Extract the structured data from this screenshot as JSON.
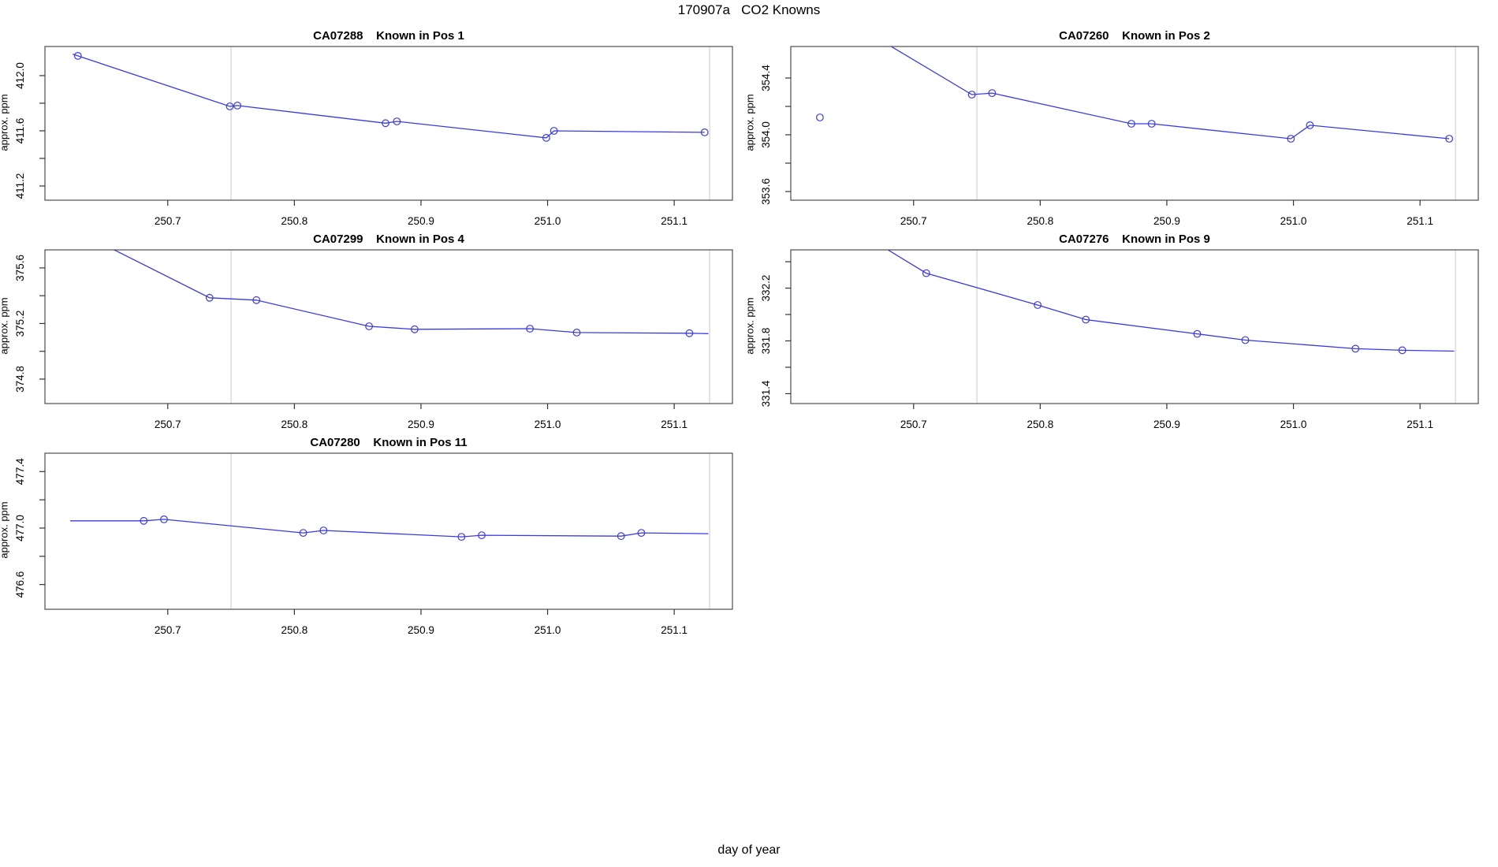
{
  "page_title": "170907a   CO2 Knowns",
  "x_axis_label": "day of year",
  "colors": {
    "series_line": "#3a3ae0",
    "marker_stroke": "#3a3ae0",
    "gridline": "#d9d9d9",
    "frame": "#4d4d4d",
    "tick": "#333333",
    "text": "#000000"
  },
  "x_ticks": [
    {
      "v": 250.7,
      "label": "250.7"
    },
    {
      "v": 250.8,
      "label": "250.8"
    },
    {
      "v": 250.9,
      "label": "250.9"
    },
    {
      "v": 251.0,
      "label": "251.0"
    },
    {
      "v": 251.1,
      "label": "251.1"
    }
  ],
  "gridlines_x": [
    250.75,
    251.128
  ],
  "chart_data": [
    {
      "type": "line",
      "id": "CA07288",
      "title": "CA07288    Known in Pos 1",
      "ylabel": "approx. ppm",
      "xlim": [
        250.603,
        251.146
      ],
      "ylim": [
        411.097,
        412.211
      ],
      "y_ticks": [
        {
          "v": 411.2,
          "label": "411.2"
        },
        {
          "v": 411.4,
          "label": ""
        },
        {
          "v": 411.6,
          "label": "411.6"
        },
        {
          "v": 411.8,
          "label": ""
        },
        {
          "v": 412.0,
          "label": "412.0"
        }
      ],
      "points": [
        {
          "x": 250.625,
          "y": 412.155,
          "marker": false
        },
        {
          "x": 250.629,
          "y": 412.143,
          "marker": true
        },
        {
          "x": 250.749,
          "y": 411.777,
          "marker": true
        },
        {
          "x": 250.755,
          "y": 411.783,
          "marker": true
        },
        {
          "x": 250.872,
          "y": 411.655,
          "marker": true
        },
        {
          "x": 250.881,
          "y": 411.668,
          "marker": true
        },
        {
          "x": 250.999,
          "y": 411.549,
          "marker": true
        },
        {
          "x": 251.005,
          "y": 411.6,
          "marker": true
        },
        {
          "x": 251.124,
          "y": 411.589,
          "marker": true
        }
      ],
      "isolated_points": []
    },
    {
      "type": "line",
      "id": "CA07260",
      "title": "CA07260    Known in Pos 2",
      "ylabel": "approx. ppm",
      "xlim": [
        250.603,
        251.146
      ],
      "ylim": [
        353.539,
        354.622
      ],
      "y_ticks": [
        {
          "v": 353.6,
          "label": "353.6"
        },
        {
          "v": 353.8,
          "label": ""
        },
        {
          "v": 354.0,
          "label": "354.0"
        },
        {
          "v": 354.2,
          "label": ""
        },
        {
          "v": 354.4,
          "label": "354.4"
        }
      ],
      "points": [
        {
          "x": 250.63,
          "y": 354.9,
          "marker": false
        },
        {
          "x": 250.746,
          "y": 354.283,
          "marker": true
        },
        {
          "x": 250.762,
          "y": 354.294,
          "marker": true
        },
        {
          "x": 250.872,
          "y": 354.078,
          "marker": true
        },
        {
          "x": 250.888,
          "y": 354.078,
          "marker": true
        },
        {
          "x": 250.998,
          "y": 353.972,
          "marker": true
        },
        {
          "x": 251.013,
          "y": 354.067,
          "marker": true
        },
        {
          "x": 251.123,
          "y": 353.972,
          "marker": true
        }
      ],
      "isolated_points": [
        {
          "x": 250.626,
          "y": 354.122
        }
      ]
    },
    {
      "type": "line",
      "id": "CA07299",
      "title": "CA07299    Known in Pos 4",
      "ylabel": "approx. ppm",
      "xlim": [
        250.603,
        251.146
      ],
      "ylim": [
        374.624,
        375.73
      ],
      "y_ticks": [
        {
          "v": 374.8,
          "label": "374.8"
        },
        {
          "v": 375.0,
          "label": ""
        },
        {
          "v": 375.2,
          "label": "375.2"
        },
        {
          "v": 375.4,
          "label": ""
        },
        {
          "v": 375.6,
          "label": "375.6"
        }
      ],
      "points": [
        {
          "x": 250.625,
          "y": 375.88,
          "marker": false
        },
        {
          "x": 250.733,
          "y": 375.385,
          "marker": true
        },
        {
          "x": 250.77,
          "y": 375.368,
          "marker": true
        },
        {
          "x": 250.859,
          "y": 375.18,
          "marker": true
        },
        {
          "x": 250.895,
          "y": 375.158,
          "marker": true
        },
        {
          "x": 250.986,
          "y": 375.163,
          "marker": true
        },
        {
          "x": 251.023,
          "y": 375.135,
          "marker": true
        },
        {
          "x": 251.112,
          "y": 375.13,
          "marker": true
        },
        {
          "x": 251.127,
          "y": 375.127,
          "marker": false
        }
      ],
      "isolated_points": []
    },
    {
      "type": "line",
      "id": "CA07276",
      "title": "CA07276    Known in Pos 9",
      "ylabel": "approx. ppm",
      "xlim": [
        250.603,
        251.146
      ],
      "ylim": [
        331.325,
        332.49
      ],
      "y_ticks": [
        {
          "v": 331.4,
          "label": "331.4"
        },
        {
          "v": 331.6,
          "label": ""
        },
        {
          "v": 331.8,
          "label": "331.8"
        },
        {
          "v": 332.0,
          "label": ""
        },
        {
          "v": 332.2,
          "label": "332.2"
        },
        {
          "v": 332.4,
          "label": ""
        }
      ],
      "points": [
        {
          "x": 250.625,
          "y": 332.81,
          "marker": false
        },
        {
          "x": 250.71,
          "y": 332.313,
          "marker": true
        },
        {
          "x": 250.798,
          "y": 332.072,
          "marker": true
        },
        {
          "x": 250.836,
          "y": 331.961,
          "marker": true
        },
        {
          "x": 250.924,
          "y": 331.853,
          "marker": true
        },
        {
          "x": 250.962,
          "y": 331.806,
          "marker": true
        },
        {
          "x": 251.049,
          "y": 331.741,
          "marker": true
        },
        {
          "x": 251.086,
          "y": 331.729,
          "marker": true
        },
        {
          "x": 251.127,
          "y": 331.722,
          "marker": false
        }
      ],
      "isolated_points": []
    },
    {
      "type": "line",
      "id": "CA07280",
      "title": "CA07280    Known in Pos 11",
      "ylabel": "approx. ppm",
      "xlim": [
        250.603,
        251.146
      ],
      "ylim": [
        476.425,
        477.53
      ],
      "y_ticks": [
        {
          "v": 476.6,
          "label": "476.6"
        },
        {
          "v": 476.8,
          "label": ""
        },
        {
          "v": 477.0,
          "label": "477.0"
        },
        {
          "v": 477.2,
          "label": ""
        },
        {
          "v": 477.4,
          "label": "477.4"
        }
      ],
      "points": [
        {
          "x": 250.623,
          "y": 477.051,
          "marker": false
        },
        {
          "x": 250.681,
          "y": 477.051,
          "marker": true
        },
        {
          "x": 250.697,
          "y": 477.062,
          "marker": true
        },
        {
          "x": 250.807,
          "y": 476.966,
          "marker": true
        },
        {
          "x": 250.823,
          "y": 476.983,
          "marker": true
        },
        {
          "x": 250.932,
          "y": 476.938,
          "marker": true
        },
        {
          "x": 250.948,
          "y": 476.949,
          "marker": true
        },
        {
          "x": 251.058,
          "y": 476.943,
          "marker": true
        },
        {
          "x": 251.074,
          "y": 476.966,
          "marker": true
        },
        {
          "x": 251.127,
          "y": 476.96,
          "marker": false
        }
      ],
      "isolated_points": []
    }
  ]
}
